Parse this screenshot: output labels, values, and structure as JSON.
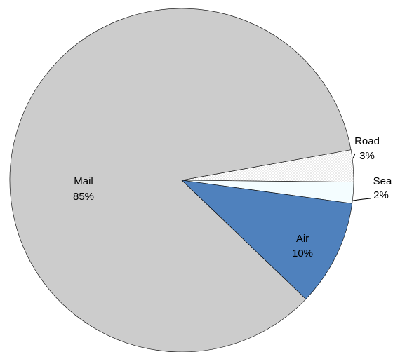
{
  "chart_data": {
    "type": "pie",
    "slices": [
      {
        "name": "Road",
        "value": 3,
        "label": "3%",
        "color": "#ffffff",
        "pattern": "dotted"
      },
      {
        "name": "Sea",
        "value": 2,
        "label": "2%",
        "color": "#f4fdff"
      },
      {
        "name": "Air",
        "value": 10,
        "label": "10%",
        "color": "#4f81bd"
      },
      {
        "name": "Mail",
        "value": 85,
        "label": "85%",
        "color": "#cccccc"
      }
    ],
    "title": "",
    "legend": "none",
    "start_angle_deg": -10.2,
    "direction": "clockwise"
  }
}
